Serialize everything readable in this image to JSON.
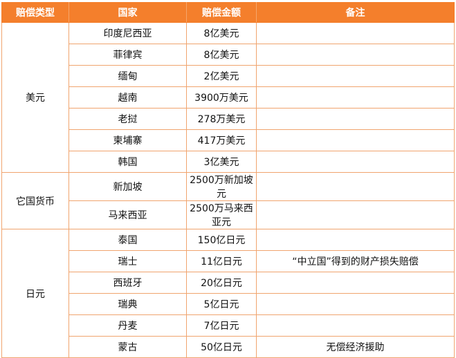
{
  "table": {
    "headers": [
      "赔偿类型",
      "国家",
      "赔偿金额",
      "备注"
    ],
    "groups": [
      {
        "type": "美元",
        "rows": [
          {
            "country": "印度尼西亚",
            "amount": "8亿美元",
            "note": ""
          },
          {
            "country": "菲律宾",
            "amount": "8亿美元",
            "note": ""
          },
          {
            "country": "缅甸",
            "amount": "2亿美元",
            "note": ""
          },
          {
            "country": "越南",
            "amount": "3900万美元",
            "note": ""
          },
          {
            "country": "老挝",
            "amount": "278万美元",
            "note": ""
          },
          {
            "country": "柬埔寨",
            "amount": "417万美元",
            "note": ""
          },
          {
            "country": "韩国",
            "amount": "3亿美元",
            "note": ""
          }
        ]
      },
      {
        "type": "它国货币",
        "rows": [
          {
            "country": "新加坡",
            "amount": "2500万新加坡元",
            "note": ""
          },
          {
            "country": "马来西亚",
            "amount": "2500万马来西亚元",
            "note": ""
          }
        ]
      },
      {
        "type": "日元",
        "rows": [
          {
            "country": "泰国",
            "amount": "150亿日元",
            "note": ""
          },
          {
            "country": "瑞士",
            "amount": "11亿日元",
            "note": "“中立国”得到的财产损失赔偿"
          },
          {
            "country": "西班牙",
            "amount": "20亿日元",
            "note": ""
          },
          {
            "country": "瑞典",
            "amount": "5亿日元",
            "note": ""
          },
          {
            "country": "丹麦",
            "amount": "7亿日元",
            "note": ""
          },
          {
            "country": "蒙古",
            "amount": "50亿日元",
            "note": "无偿经济援助"
          }
        ]
      }
    ]
  },
  "colors": {
    "header_bg": "#f47f2c",
    "border": "#f0a46e"
  }
}
